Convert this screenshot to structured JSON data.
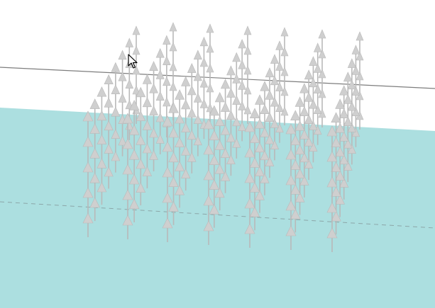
{
  "scene": {
    "background_color": "#ffffff",
    "water_color": "#acdfe0",
    "water_line_color": "#7d7d7d",
    "dashed_line_color": "#8ca6a8",
    "arrow_color": "#cfcfcf",
    "arrow_edge_color": "#b9b9b9",
    "grid_columns": 7,
    "grid_rows": 8
  },
  "cursor": {
    "icon": "mouse-pointer-icon",
    "visible": true
  }
}
